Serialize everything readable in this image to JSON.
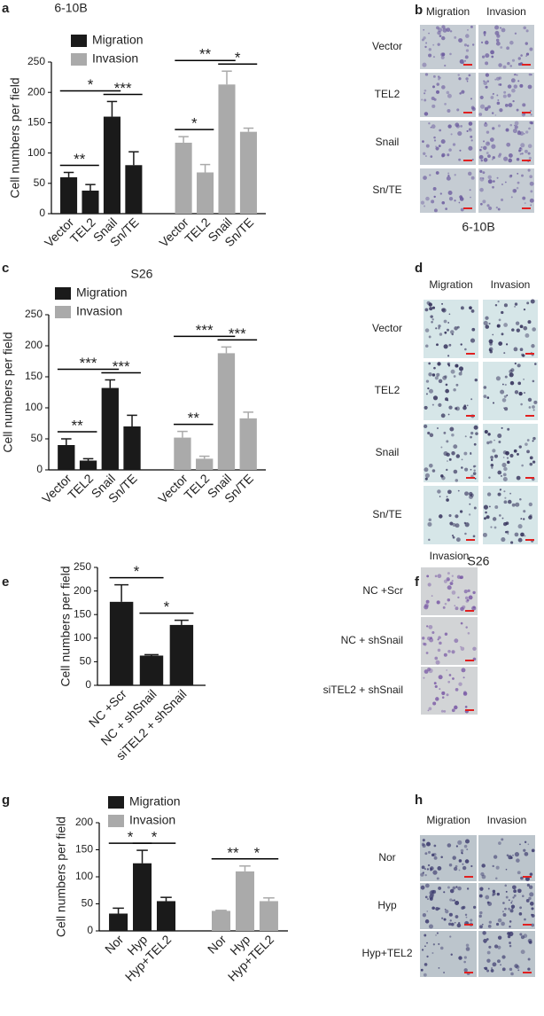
{
  "chart_data": [
    {
      "type": "bar",
      "panel_label": "a",
      "title": "6-10B",
      "y_label": "Cell numbers per field",
      "categories": [
        "Vector",
        "TEL2",
        "Snail",
        "Sn/TE"
      ],
      "series": [
        {
          "name": "Migration",
          "color": "#1a1a1a",
          "values": [
            60,
            38,
            160,
            80
          ],
          "errors": [
            8,
            10,
            25,
            22
          ]
        },
        {
          "name": "Invasion",
          "color": "#aaaaaa",
          "values": [
            117,
            68,
            213,
            135
          ],
          "errors": [
            10,
            13,
            22,
            6
          ]
        }
      ],
      "ylim": [
        0,
        250
      ],
      "yticks": [
        0,
        50,
        100,
        150,
        200,
        250
      ],
      "annotations": [
        {
          "label": "**",
          "series": 0,
          "from": 0,
          "to": 1
        },
        {
          "label": "*",
          "series": 0,
          "from": 0,
          "to": 2
        },
        {
          "label": "***",
          "series": 0,
          "from": 2,
          "to": 3
        },
        {
          "label": "*",
          "series": 1,
          "from": 0,
          "to": 1
        },
        {
          "label": "**",
          "series": 1,
          "from": 0,
          "to": 2
        },
        {
          "label": "*",
          "series": 1,
          "from": 2,
          "to": 3
        }
      ]
    },
    {
      "type": "bar",
      "panel_label": "c",
      "title": "S26",
      "y_label": "Cell numbers per field",
      "categories": [
        "Vector",
        "TEL2",
        "Snail",
        "Sn/TE"
      ],
      "series": [
        {
          "name": "Migration",
          "color": "#1a1a1a",
          "values": [
            40,
            15,
            132,
            70
          ],
          "errors": [
            10,
            3,
            13,
            18
          ]
        },
        {
          "name": "Invasion",
          "color": "#aaaaaa",
          "values": [
            52,
            18,
            188,
            83
          ],
          "errors": [
            10,
            4,
            10,
            10
          ]
        }
      ],
      "ylim": [
        0,
        250
      ],
      "yticks": [
        0,
        50,
        100,
        150,
        200,
        250
      ],
      "annotations": [
        {
          "label": "**",
          "series": 0,
          "from": 0,
          "to": 1
        },
        {
          "label": "***",
          "series": 0,
          "from": 0,
          "to": 2
        },
        {
          "label": "***",
          "series": 0,
          "from": 2,
          "to": 3
        },
        {
          "label": "**",
          "series": 1,
          "from": 0,
          "to": 1
        },
        {
          "label": "***",
          "series": 1,
          "from": 0,
          "to": 2
        },
        {
          "label": "***",
          "series": 1,
          "from": 2,
          "to": 3
        }
      ]
    },
    {
      "type": "bar",
      "panel_label": "e",
      "y_label": "Cell numbers per field",
      "categories": [
        "NC +Scr",
        "NC + shSnail",
        "siTEL2 + shSnail"
      ],
      "series": [
        {
          "color": "#1a1a1a",
          "values": [
            177,
            63,
            128
          ],
          "errors": [
            36,
            2,
            10
          ]
        }
      ],
      "ylim": [
        0,
        250
      ],
      "yticks": [
        0,
        50,
        100,
        150,
        200,
        250
      ],
      "annotations": [
        {
          "label": "*",
          "series": 0,
          "from": 0,
          "to": 1
        },
        {
          "label": "*",
          "series": 0,
          "from": 1,
          "to": 2
        }
      ]
    },
    {
      "type": "bar",
      "panel_label": "g",
      "y_label": "Cell numbers per field",
      "categories": [
        "Nor",
        "Hyp",
        "Hyp+TEL2"
      ],
      "series": [
        {
          "name": "Migration",
          "color": "#1a1a1a",
          "values": [
            32,
            125,
            55
          ],
          "errors": [
            10,
            24,
            7
          ]
        },
        {
          "name": "Invasion",
          "color": "#aaaaaa",
          "values": [
            37,
            110,
            55
          ],
          "errors": [
            1,
            10,
            6
          ]
        }
      ],
      "ylim": [
        0,
        200
      ],
      "yticks": [
        0,
        50,
        100,
        150,
        200
      ],
      "annotations": [
        {
          "label": "*",
          "series": 0,
          "from": 0,
          "to": 1
        },
        {
          "label": "*",
          "series": 0,
          "from": 1,
          "to": 2
        },
        {
          "label": "**",
          "series": 1,
          "from": 0,
          "to": 1
        },
        {
          "label": "*",
          "series": 1,
          "from": 1,
          "to": 2
        }
      ]
    }
  ],
  "image_panels": [
    {
      "panel_label": "b",
      "columns": [
        "Migration",
        "Invasion"
      ],
      "rows": [
        "Vector",
        "TEL2",
        "Snail",
        "Sn/TE"
      ],
      "caption": "6-10B"
    },
    {
      "panel_label": "d",
      "columns": [
        "Migration",
        "Invasion"
      ],
      "rows": [
        "Vector",
        "TEL2",
        "Snail",
        "Sn/TE"
      ],
      "caption": "S26"
    },
    {
      "panel_label": "f",
      "columns": [
        "Invasion"
      ],
      "rows": [
        "NC +Scr",
        "NC + shSnail",
        "siTEL2 + shSnail"
      ]
    },
    {
      "panel_label": "h",
      "columns": [
        "Migration",
        "Invasion"
      ],
      "rows": [
        "Nor",
        "Hyp",
        "Hyp+TEL2"
      ]
    }
  ]
}
